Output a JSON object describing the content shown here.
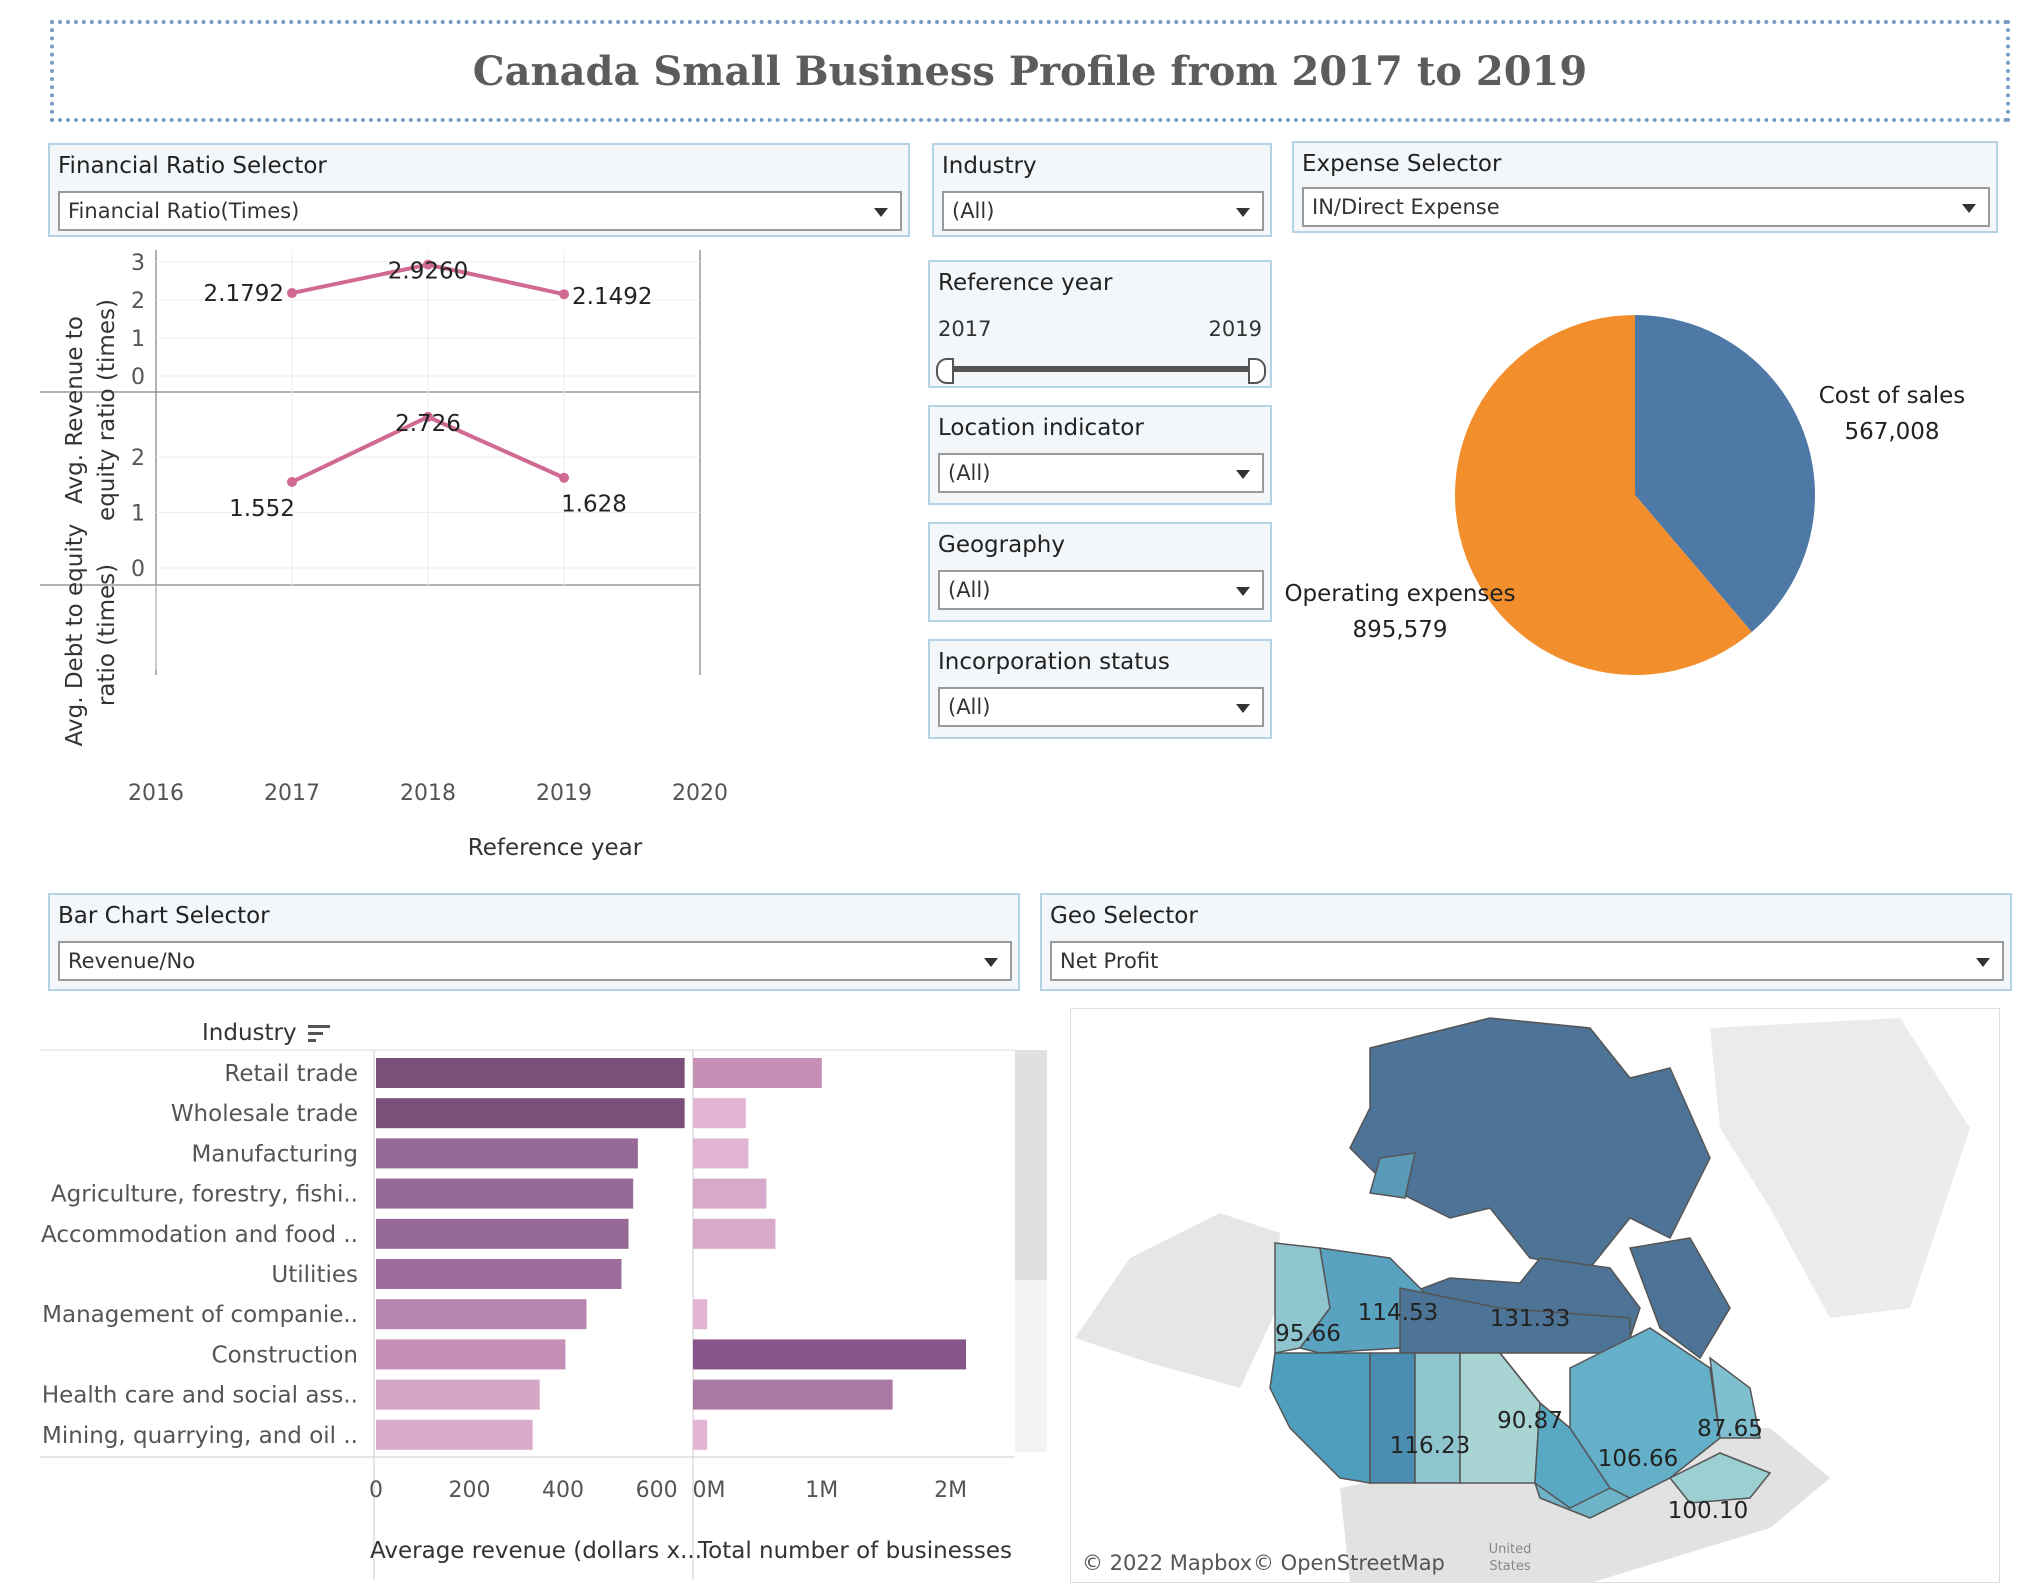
{
  "title": "Canada Small Business Profile from 2017 to 2019",
  "filters": {
    "financial_ratio": {
      "label": "Financial Ratio Selector",
      "value": "Financial Ratio(Times)"
    },
    "industry": {
      "label": "Industry",
      "value": "(All)"
    },
    "expense": {
      "label": "Expense Selector",
      "value": "IN/Direct Expense"
    },
    "reference_year": {
      "label": "Reference year",
      "min": "2017",
      "max": "2019"
    },
    "location": {
      "label": "Location indicator",
      "value": "(All)"
    },
    "geography": {
      "label": "Geography",
      "value": "(All)"
    },
    "incorporation": {
      "label": "Incorporation status",
      "value": "(All)"
    },
    "bar_chart": {
      "label": "Bar Chart Selector",
      "value": "Revenue/No"
    },
    "geo": {
      "label": "Geo Selector",
      "value": "Net Profit"
    }
  },
  "line_chart": {
    "xlabel": "Reference year",
    "x_ticks": [
      "2016",
      "2017",
      "2018",
      "2019",
      "2020"
    ],
    "top": {
      "ylabel_line1": "Avg. Revenue to",
      "ylabel_line2": "equity ratio (times)",
      "y_ticks": [
        "0",
        "1",
        "2",
        "3"
      ],
      "x": [
        2017,
        2018,
        2019
      ],
      "values": [
        2.1792,
        2.926,
        2.1492
      ],
      "labels": [
        "2.1792",
        "2.9260",
        "2.1492"
      ],
      "ylim": [
        0,
        3.1
      ]
    },
    "bottom": {
      "ylabel_line1": "Avg. Debt to equity",
      "ylabel_line2": "ratio (times)",
      "y_ticks": [
        "0",
        "1",
        "2"
      ],
      "x": [
        2017,
        2018,
        2019
      ],
      "values": [
        1.552,
        2.726,
        1.628
      ],
      "labels": [
        "1.552",
        "2.726",
        "1.628"
      ],
      "ylim": [
        0,
        2.85
      ]
    },
    "color": "#d06a93"
  },
  "pie_chart": {
    "slices": [
      {
        "name": "Cost of sales",
        "value": 567008,
        "label": "567,008",
        "color": "#4e79a7"
      },
      {
        "name": "Operating expenses",
        "value": 895579,
        "label": "895,579",
        "color": "#f28e2b"
      }
    ]
  },
  "bar_chart": {
    "header": "Industry",
    "categories": [
      "Retail trade",
      "Wholesale trade",
      "Manufacturing",
      "Agriculture, forestry, fishi..",
      "Accommodation and food ..",
      "Utilities",
      "Management of companie..",
      "Construction",
      "Health care and social ass..",
      "Mining, quarrying, and oil .."
    ],
    "revenue": {
      "title": "Average revenue (dollars x...",
      "ticks": [
        "0",
        "200",
        "400",
        "600"
      ],
      "values": [
        660,
        660,
        560,
        550,
        540,
        525,
        450,
        405,
        350,
        335
      ],
      "xlim": [
        0,
        680
      ]
    },
    "count": {
      "title": "Total number of businesses",
      "ticks": [
        "0M",
        "1M",
        "2M"
      ],
      "values": [
        1000000,
        410000,
        430000,
        570000,
        640000,
        0,
        110000,
        2120000,
        1550000,
        110000
      ],
      "xlim": [
        0,
        2500000
      ]
    }
  },
  "map": {
    "labels": [
      {
        "region": "BC",
        "value": "116.23"
      },
      {
        "region": "AB",
        "value": "90.87"
      },
      {
        "region": "YT",
        "value": "95.66"
      },
      {
        "region": "NT",
        "value": "114.53"
      },
      {
        "region": "NU",
        "value": "131.33"
      },
      {
        "region": "ON",
        "value": "106.66"
      },
      {
        "region": "NL",
        "value": "87.65"
      },
      {
        "region": "NS",
        "value": "100.10"
      }
    ],
    "credit_mapbox": "© 2022 Mapbox",
    "credit_osm": "© OpenStreetMap",
    "us_label_1": "United",
    "us_label_2": "States"
  }
}
